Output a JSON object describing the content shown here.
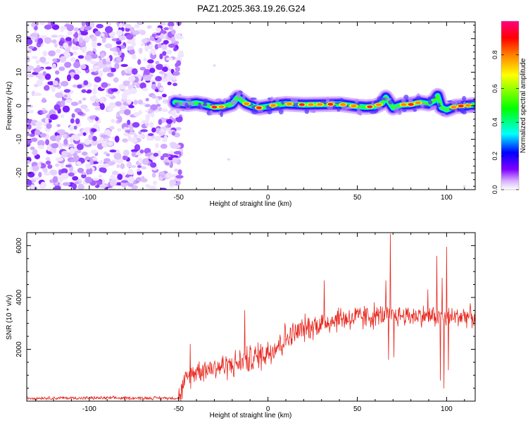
{
  "title": "PAZ1.2025.363.19.26.G24",
  "chart_data": [
    {
      "type": "heatmap",
      "xlabel": "Height of straight line (km)",
      "ylabel": "Frequency (Hz)",
      "xlim": [
        -135,
        116
      ],
      "ylim": [
        -25,
        25
      ],
      "xticks": [
        -100,
        -50,
        0,
        50,
        100
      ],
      "xtick_labels": [
        "-100",
        "-50",
        "0",
        "50",
        "100"
      ],
      "yticks": [
        -20,
        -10,
        0,
        10,
        20
      ],
      "ytick_labels": [
        "-20",
        "-10",
        "0",
        "10",
        "20"
      ],
      "colorbar": {
        "label": "Normalized spectral amplitude",
        "range": [
          0,
          1
        ],
        "ticks": [
          0.0,
          0.2,
          0.4,
          0.6,
          0.8
        ],
        "tick_labels": [
          "0.0",
          "0.2",
          "0.4",
          "0.6",
          "0.8"
        ],
        "colormap": [
          "#ffffff",
          "#8000ff",
          "#0000ff",
          "#00ffff",
          "#00ff00",
          "#ffff00",
          "#ff8000",
          "#ff0000",
          "#ff0080"
        ]
      },
      "noise_region_x": [
        -135,
        -50
      ],
      "signal_region_x": [
        -52,
        116
      ],
      "signal_centerline": {
        "x": [
          -52,
          -45,
          -40,
          -35,
          -30,
          -25,
          -20,
          -17,
          -12,
          -8,
          -5,
          0,
          5,
          10,
          20,
          30,
          40,
          50,
          55,
          60,
          64,
          66,
          70,
          75,
          80,
          85,
          90,
          93,
          95,
          97,
          100,
          105,
          110,
          116
        ],
        "freq": [
          1,
          0.5,
          0.8,
          0.3,
          -0.4,
          -0.3,
          0.5,
          2.5,
          0.6,
          -0.2,
          -0.6,
          -0.2,
          0.3,
          0.6,
          0.3,
          0.4,
          0.5,
          -0.2,
          -0.4,
          -0.2,
          0.8,
          2.5,
          -0.6,
          0.3,
          0.4,
          1.0,
          0.6,
          1.5,
          3,
          -0.5,
          -1.2,
          -0.2,
          0,
          0.3
        ]
      }
    },
    {
      "type": "line",
      "series_name": "SNR",
      "color": "#e8251c",
      "xlabel": "Height of straight line (km)",
      "ylabel": "SNR (10 * v/v)",
      "xlim": [
        -135,
        116
      ],
      "ylim": [
        0,
        6500
      ],
      "xticks": [
        -100,
        -50,
        0,
        50,
        100
      ],
      "xtick_labels": [
        "-100",
        "-50",
        "0",
        "50",
        "100"
      ],
      "yticks": [
        2000,
        4000,
        6000
      ],
      "ytick_labels": [
        "2000",
        "4000",
        "6000"
      ],
      "trend": {
        "x": [
          -135,
          -50,
          -46,
          -40,
          -30,
          -20,
          -10,
          0,
          10,
          20,
          30,
          40,
          50,
          60,
          70,
          80,
          90,
          100,
          110,
          116
        ],
        "y": [
          120,
          120,
          800,
          1200,
          1300,
          1400,
          1600,
          1900,
          2400,
          2800,
          3000,
          3200,
          3200,
          3300,
          3300,
          3300,
          3300,
          3200,
          3300,
          3250
        ]
      },
      "spikes": [
        {
          "x": -43.5,
          "y": 2200
        },
        {
          "x": -13,
          "y": 3500
        },
        {
          "x": 31.5,
          "y": 4650
        },
        {
          "x": 66,
          "y": 4650
        },
        {
          "x": 67.5,
          "y": 1600
        },
        {
          "x": 68.5,
          "y": 6450
        },
        {
          "x": 70.5,
          "y": 1700
        },
        {
          "x": 89.5,
          "y": 4300
        },
        {
          "x": 94.5,
          "y": 5600
        },
        {
          "x": 96.5,
          "y": 800
        },
        {
          "x": 97.5,
          "y": 4750
        },
        {
          "x": 98.5,
          "y": 500
        },
        {
          "x": 100,
          "y": 5950
        },
        {
          "x": 101,
          "y": 1200
        }
      ]
    }
  ]
}
